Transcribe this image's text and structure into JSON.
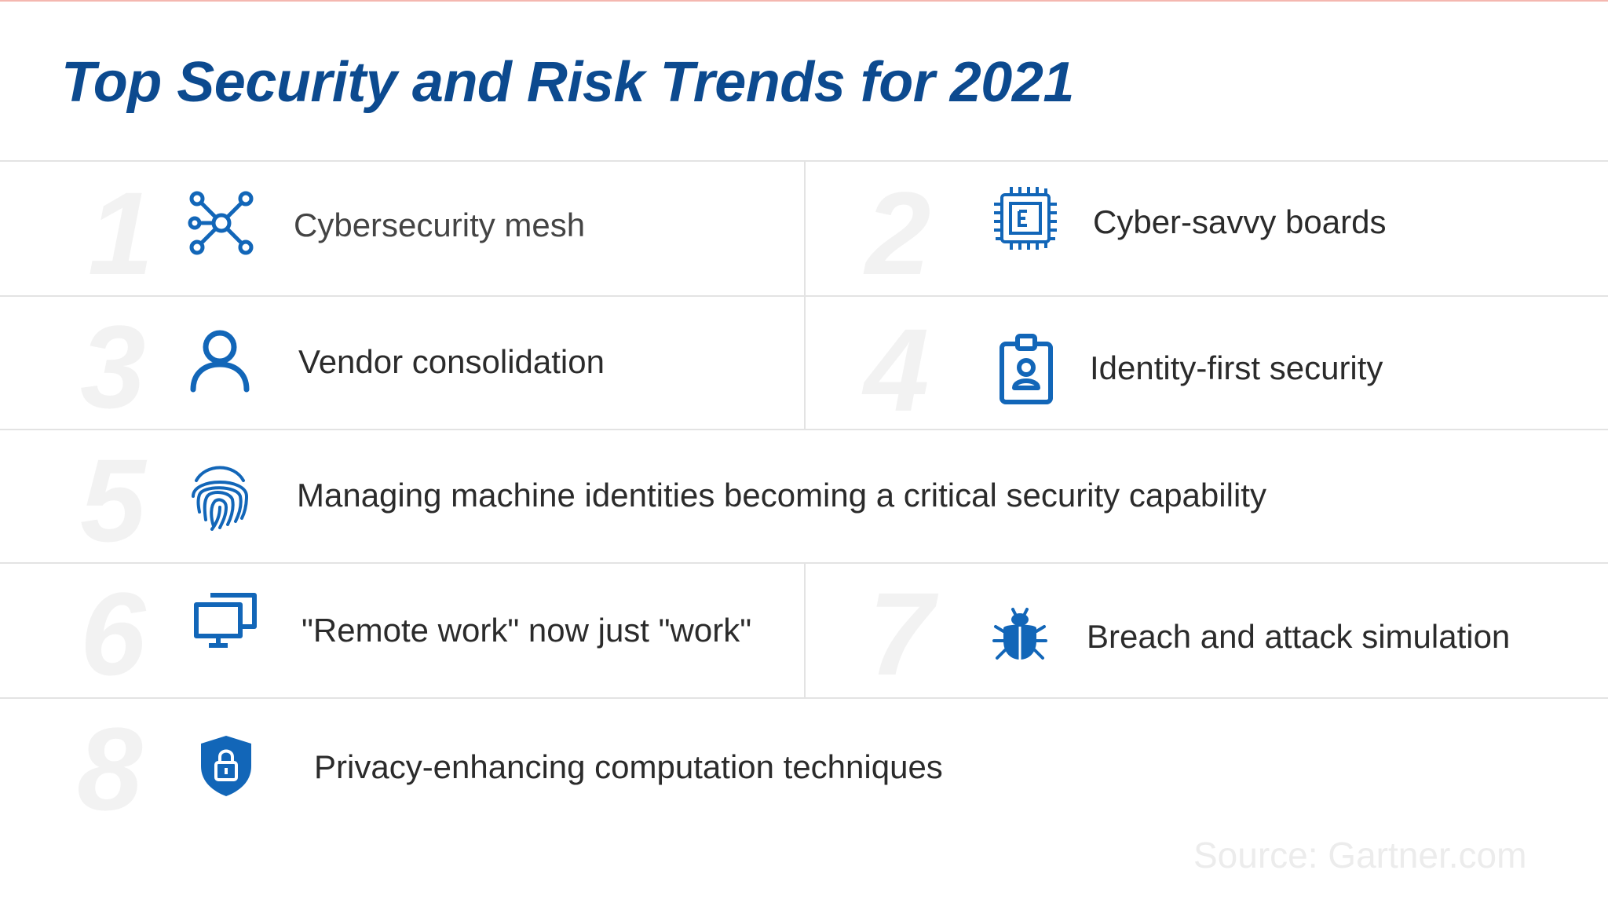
{
  "title": "Top Security and Risk Trends for 2021",
  "accent_color": "#0c4a8f",
  "trends": [
    {
      "number": "1",
      "label": "Cybersecurity mesh",
      "icon": "network-mesh-icon"
    },
    {
      "number": "2",
      "label": "Cyber-savvy boards",
      "icon": "chip-icon"
    },
    {
      "number": "3",
      "label": "Vendor consolidation",
      "icon": "person-icon"
    },
    {
      "number": "4",
      "label": "Identity-first security",
      "icon": "id-badge-icon"
    },
    {
      "number": "5",
      "label": "Managing machine identities becoming a critical security capability",
      "icon": "fingerprint-icon"
    },
    {
      "number": "6",
      "label": "\"Remote work\" now just \"work\"",
      "icon": "monitors-icon"
    },
    {
      "number": "7",
      "label": "Breach and attack simulation",
      "icon": "bug-icon"
    },
    {
      "number": "8",
      "label": "Privacy-enhancing computation techniques",
      "icon": "shield-lock-icon"
    }
  ],
  "source": "Source:  Gartner.com"
}
